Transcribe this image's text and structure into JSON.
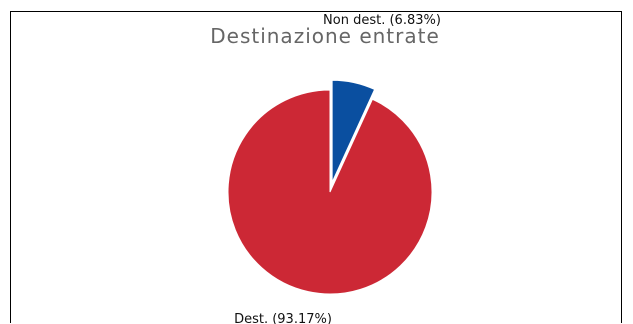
{
  "chart_data": {
    "type": "pie",
    "title": "Destinazione entrate",
    "slices": [
      {
        "label": "Dest. (93.17%)",
        "value": 93.17,
        "color": "#cc2835",
        "exploded": false
      },
      {
        "label": "Non dest. (6.83%)",
        "value": 6.83,
        "color": "#0a4fa0",
        "exploded": true
      }
    ],
    "start_angle": "12 o'clock",
    "direction": "counterclockwise"
  }
}
